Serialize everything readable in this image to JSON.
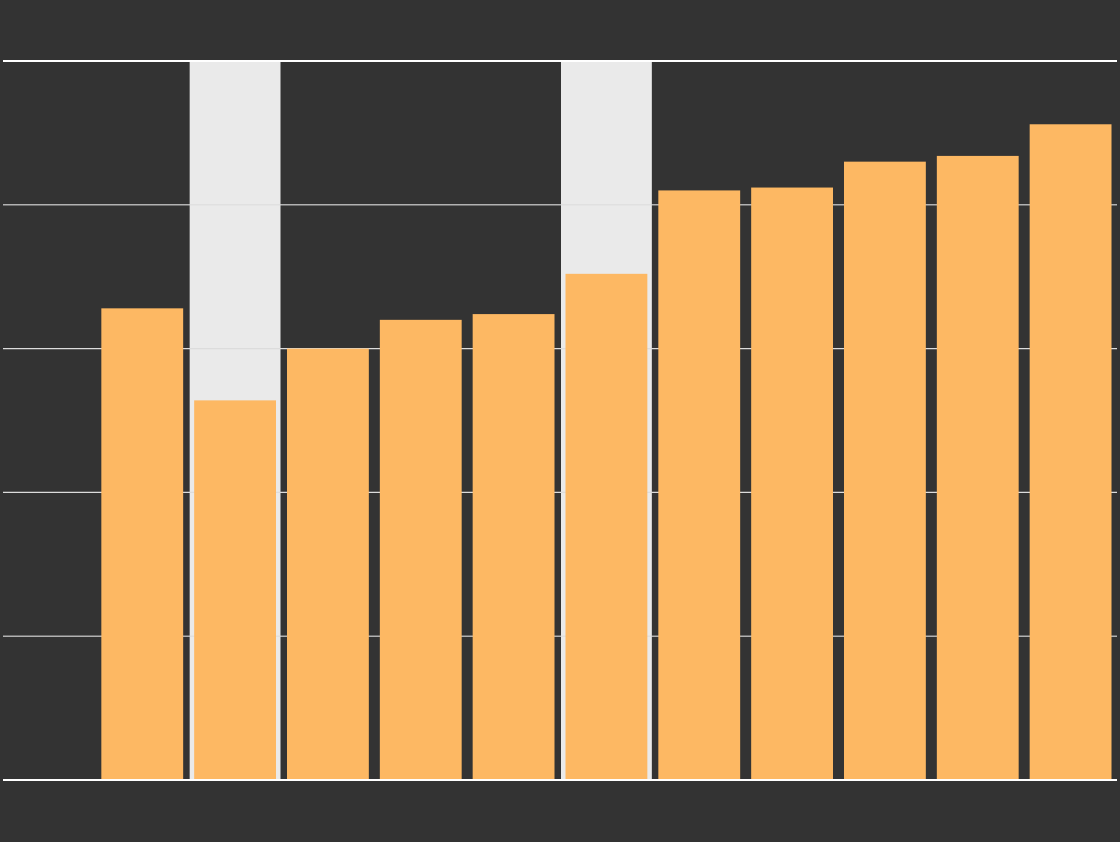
{
  "colors": {
    "background": "#333333",
    "bar": "#FDB863",
    "highlight": "#EAEAEA",
    "gridline": "#DCDCDC"
  },
  "chart_data": {
    "type": "bar",
    "categories": [
      "",
      "",
      "",
      "",
      "",
      "",
      "",
      "",
      "",
      "",
      "",
      ""
    ],
    "values": [
      0,
      3.28,
      2.64,
      3.0,
      3.2,
      3.24,
      3.52,
      4.1,
      4.12,
      4.3,
      4.34,
      4.56
    ],
    "highlight_categories": [
      2,
      6
    ],
    "ylim": [
      0,
      5
    ],
    "yticks": [
      0,
      1,
      2,
      3,
      4,
      5
    ],
    "grid": true,
    "title": "",
    "xlabel": "",
    "ylabel": ""
  }
}
